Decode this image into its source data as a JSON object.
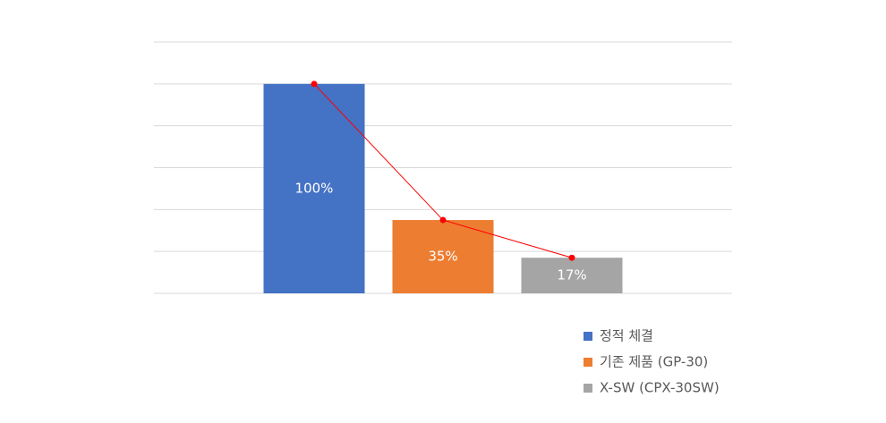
{
  "chart_data": {
    "type": "bar",
    "series": [
      {
        "name": "정적 체결",
        "color": "#4472c4",
        "values": [
          100
        ],
        "value_labels": [
          "100%"
        ]
      },
      {
        "name": "기존 제품 (GP-30)",
        "color": "#ed7d31",
        "values": [
          35
        ],
        "value_labels": [
          "35%"
        ]
      },
      {
        "name": "X-SW (CPX-30SW)",
        "color": "#a5a5a5",
        "values": [
          17
        ],
        "value_labels": [
          "17%"
        ]
      }
    ],
    "ylim": [
      0,
      120
    ],
    "yticks": [
      0,
      20,
      40,
      60,
      80,
      100,
      120
    ],
    "grid": true,
    "trend_line_color": "#ff0000",
    "legend": "bottom-right"
  }
}
